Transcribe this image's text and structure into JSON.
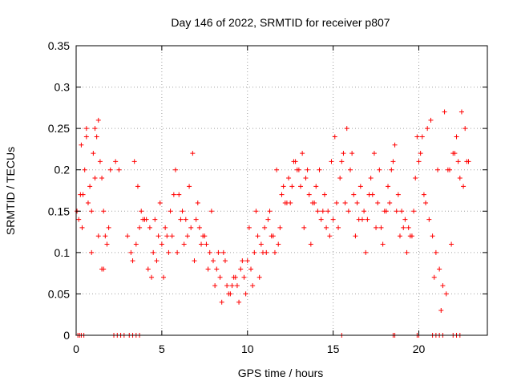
{
  "chart_data": {
    "type": "scatter",
    "title": "Day 146 of 2022, SRMTID for receiver p807",
    "xlabel": "GPS time / hours",
    "ylabel": "SRMTID / TECUs",
    "xlim": [
      0,
      24
    ],
    "ylim": [
      0,
      0.35
    ],
    "xticks": [
      0,
      5,
      10,
      15,
      20
    ],
    "xtick_labels": [
      "0",
      "5",
      "10",
      "15",
      "20"
    ],
    "yticks": [
      0,
      0.05,
      0.1,
      0.15,
      0.2,
      0.25,
      0.3,
      0.35
    ],
    "ytick_labels": [
      "0",
      "0.05",
      "0.1",
      "0.15",
      "0.2",
      "0.25",
      "0.3",
      "0.35"
    ],
    "grid": true,
    "marker": "plus",
    "color": "#ff0000",
    "series": [
      {
        "name": "SRMTID",
        "x": [
          0.05,
          0.15,
          0.25,
          0.35,
          0.5,
          0.6,
          0.7,
          0.8,
          0.9,
          1.0,
          1.1,
          1.2,
          1.3,
          1.4,
          1.5,
          1.6,
          1.7,
          1.8,
          1.9,
          2.0,
          2.3,
          2.5,
          3.0,
          3.2,
          3.4,
          3.6,
          3.8,
          4.0,
          4.2,
          4.4,
          4.6,
          4.8,
          5.0,
          5.2,
          5.4,
          5.6,
          5.8,
          6.0,
          6.2,
          6.4,
          6.6,
          6.8,
          7.0,
          7.2,
          7.4,
          7.6,
          7.8,
          8.0,
          8.2,
          8.4,
          8.6,
          8.8,
          9.0,
          9.2,
          9.4,
          9.6,
          9.8,
          10.0,
          10.2,
          10.4,
          10.6,
          10.8,
          11.0,
          11.2,
          11.4,
          11.6,
          11.8,
          12.0,
          12.2,
          12.4,
          12.6,
          12.8,
          13.0,
          13.2,
          13.4,
          13.6,
          13.8,
          14.0,
          14.2,
          14.4,
          14.6,
          14.8,
          15.0,
          15.2,
          15.4,
          15.6,
          15.8,
          16.0,
          16.2,
          16.4,
          16.6,
          16.8,
          17.0,
          17.2,
          17.4,
          17.6,
          17.8,
          18.0,
          18.2,
          18.4,
          18.6,
          18.8,
          19.0,
          19.2,
          19.4,
          19.6,
          19.8,
          20.0,
          20.2,
          20.4,
          20.6,
          20.8,
          21.0,
          21.2,
          21.4,
          21.6,
          21.8,
          22.0,
          22.2,
          22.4,
          22.6,
          22.8,
          0.3,
          0.6,
          0.9,
          1.3,
          1.6,
          3.5,
          3.9,
          4.3,
          4.7,
          5.1,
          5.5,
          5.9,
          6.3,
          6.7,
          7.1,
          7.5,
          7.9,
          8.3,
          8.7,
          9.1,
          9.5,
          9.9,
          10.3,
          10.7,
          11.1,
          11.5,
          11.9,
          12.3,
          12.7,
          13.1,
          13.5,
          13.9,
          14.3,
          14.7,
          15.1,
          15.5,
          15.9,
          16.3,
          16.7,
          17.1,
          17.5,
          17.9,
          18.3,
          18.7,
          19.1,
          19.5,
          19.9,
          20.3,
          20.7,
          21.1,
          21.5,
          21.9,
          22.3,
          22.7,
          0.4,
          1.1,
          1.5,
          3.3,
          3.7,
          4.1,
          4.5,
          4.9,
          5.3,
          5.7,
          6.1,
          6.5,
          6.9,
          7.3,
          7.7,
          8.1,
          8.5,
          8.9,
          9.3,
          9.7,
          10.1,
          10.5,
          10.9,
          11.3,
          11.7,
          12.1,
          12.5,
          12.9,
          13.3,
          13.7,
          14.1,
          14.5,
          14.9,
          15.3,
          15.7,
          16.1,
          16.5,
          16.9,
          17.3,
          17.7,
          18.1,
          18.5,
          18.9,
          19.3,
          19.7,
          20.1,
          20.5,
          20.9,
          21.3,
          21.7,
          22.1,
          22.5,
          22.9,
          0.1,
          0.2,
          0.3,
          0.45,
          2.2,
          2.4,
          2.6,
          2.8,
          3.1,
          3.3,
          3.5,
          3.7,
          15.5,
          18.5,
          18.6,
          19.9,
          20.0,
          20.8,
          21.0,
          21.2,
          21.4,
          22.0,
          22.2,
          22.4
        ],
        "y": [
          0.15,
          0.14,
          0.17,
          0.13,
          0.2,
          0.24,
          0.16,
          0.18,
          0.1,
          0.22,
          0.25,
          0.24,
          0.26,
          0.21,
          0.19,
          0.15,
          0.12,
          0.11,
          0.13,
          0.2,
          0.21,
          0.2,
          0.12,
          0.1,
          0.21,
          0.18,
          0.15,
          0.14,
          0.08,
          0.07,
          0.14,
          0.12,
          0.11,
          0.13,
          0.1,
          0.12,
          0.2,
          0.17,
          0.15,
          0.14,
          0.18,
          0.22,
          0.14,
          0.13,
          0.12,
          0.11,
          0.1,
          0.09,
          0.08,
          0.07,
          0.1,
          0.06,
          0.05,
          0.07,
          0.06,
          0.08,
          0.07,
          0.09,
          0.08,
          0.1,
          0.12,
          0.11,
          0.13,
          0.14,
          0.12,
          0.1,
          0.11,
          0.17,
          0.16,
          0.19,
          0.18,
          0.21,
          0.2,
          0.22,
          0.19,
          0.17,
          0.16,
          0.18,
          0.2,
          0.15,
          0.13,
          0.12,
          0.14,
          0.16,
          0.19,
          0.22,
          0.25,
          0.2,
          0.17,
          0.16,
          0.18,
          0.15,
          0.14,
          0.19,
          0.22,
          0.16,
          0.13,
          0.15,
          0.18,
          0.2,
          0.23,
          0.17,
          0.15,
          0.14,
          0.13,
          0.12,
          0.19,
          0.21,
          0.24,
          0.16,
          0.14,
          0.12,
          0.1,
          0.08,
          0.06,
          0.05,
          0.2,
          0.22,
          0.24,
          0.19,
          0.18,
          0.21,
          0.23,
          0.25,
          0.15,
          0.12,
          0.08,
          0.11,
          0.14,
          0.13,
          0.09,
          0.07,
          0.15,
          0.1,
          0.11,
          0.13,
          0.16,
          0.12,
          0.15,
          0.1,
          0.09,
          0.06,
          0.04,
          0.05,
          0.06,
          0.07,
          0.1,
          0.12,
          0.13,
          0.16,
          0.21,
          0.18,
          0.2,
          0.16,
          0.14,
          0.15,
          0.24,
          0.21,
          0.15,
          0.12,
          0.14,
          0.17,
          0.13,
          0.11,
          0.16,
          0.15,
          0.13,
          0.12,
          0.24,
          0.17,
          0.26,
          0.2,
          0.27,
          0.11,
          0.21,
          0.25,
          0.17,
          0.19,
          0.08,
          0.09,
          0.13,
          0.14,
          0.1,
          0.16,
          0.12,
          0.17,
          0.14,
          0.12,
          0.09,
          0.11,
          0.08,
          0.06,
          0.04,
          0.05,
          0.07,
          0.09,
          0.13,
          0.15,
          0.1,
          0.15,
          0.2,
          0.18,
          0.16,
          0.2,
          0.13,
          0.11,
          0.15,
          0.17,
          0.21,
          0.13,
          0.16,
          0.22,
          0.14,
          0.1,
          0.17,
          0.2,
          0.15,
          0.21,
          0.12,
          0.1,
          0.15,
          0.22,
          0.25,
          0.07,
          0.03,
          0.2,
          0.22,
          0.27,
          0.21,
          0.0,
          0.0,
          0.0,
          0.0,
          0.0,
          0.0,
          0.0,
          0.0,
          0.0,
          0.0,
          0.0,
          0.0,
          0.0,
          0.0,
          0.0,
          0.0,
          0.0,
          0.0,
          0.0,
          0.0,
          0.0,
          0.0,
          0.0,
          0.0
        ]
      }
    ]
  }
}
